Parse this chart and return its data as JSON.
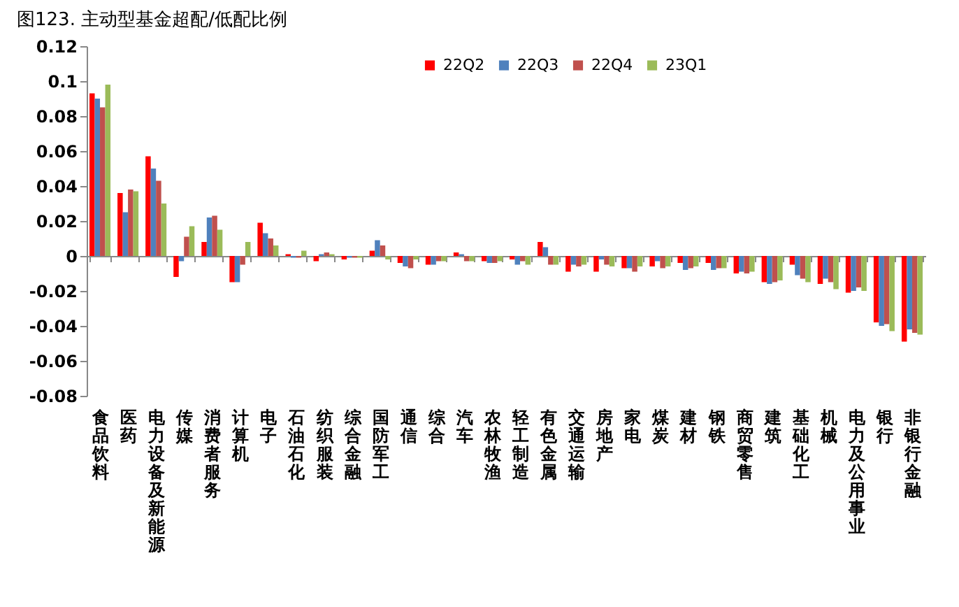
{
  "chart_data": {
    "type": "bar",
    "title": "图123. 主动型基金超配/低配比例",
    "categories": [
      "食品饮料",
      "医药",
      "电力设备及新能源",
      "传媒",
      "消费者服务",
      "计算机",
      "电子",
      "石油石化",
      "纺织服装",
      "综合金融",
      "国防军工",
      "通信",
      "综合",
      "汽车",
      "农林牧渔",
      "轻工制造",
      "有色金属",
      "交通运输",
      "房地产",
      "家电",
      "煤炭",
      "建材",
      "钢铁",
      "商贸零售",
      "建筑",
      "基础化工",
      "机械",
      "电力及公用事业",
      "银行",
      "非银行金融"
    ],
    "series": [
      {
        "name": "22Q2",
        "color": "#ff0000",
        "values": [
          0.093,
          0.036,
          0.057,
          -0.012,
          0.008,
          -0.015,
          0.019,
          0.001,
          -0.003,
          -0.002,
          0.003,
          -0.004,
          -0.005,
          0.002,
          -0.003,
          -0.002,
          0.008,
          -0.009,
          -0.009,
          -0.007,
          -0.006,
          -0.004,
          -0.004,
          -0.01,
          -0.015,
          -0.005,
          -0.016,
          -0.021,
          -0.038,
          -0.049
        ]
      },
      {
        "name": "22Q3",
        "color": "#4f81bd",
        "values": [
          0.09,
          0.025,
          0.05,
          -0.003,
          0.022,
          -0.015,
          0.013,
          -0.001,
          0.001,
          -0.001,
          0.009,
          -0.006,
          -0.005,
          0.001,
          -0.004,
          -0.005,
          0.005,
          -0.005,
          -0.002,
          -0.007,
          -0.003,
          -0.008,
          -0.008,
          -0.009,
          -0.016,
          -0.011,
          -0.013,
          -0.02,
          -0.04,
          -0.042
        ]
      },
      {
        "name": "22Q4",
        "color": "#c0504d",
        "values": [
          0.085,
          0.038,
          0.043,
          0.011,
          0.023,
          -0.005,
          0.01,
          -0.001,
          0.002,
          -0.001,
          0.006,
          -0.007,
          -0.003,
          -0.003,
          -0.004,
          -0.003,
          -0.005,
          -0.006,
          -0.005,
          -0.009,
          -0.007,
          -0.007,
          -0.007,
          -0.01,
          -0.015,
          -0.013,
          -0.015,
          -0.018,
          -0.039,
          -0.044
        ]
      },
      {
        "name": "23Q1",
        "color": "#9bbb59",
        "values": [
          0.098,
          0.037,
          0.03,
          0.017,
          0.015,
          0.008,
          0.006,
          0.003,
          0.001,
          -0.001,
          -0.002,
          -0.002,
          -0.003,
          -0.003,
          -0.003,
          -0.005,
          -0.005,
          -0.005,
          -0.006,
          -0.006,
          -0.006,
          -0.006,
          -0.007,
          -0.009,
          -0.014,
          -0.015,
          -0.019,
          -0.02,
          -0.043,
          -0.045
        ]
      }
    ],
    "ylim": [
      -0.08,
      0.12
    ],
    "yticks": [
      -0.08,
      -0.06,
      -0.04,
      -0.02,
      0,
      0.02,
      0.04,
      0.06,
      0.08,
      0.1,
      0.12
    ],
    "legend": "top"
  }
}
